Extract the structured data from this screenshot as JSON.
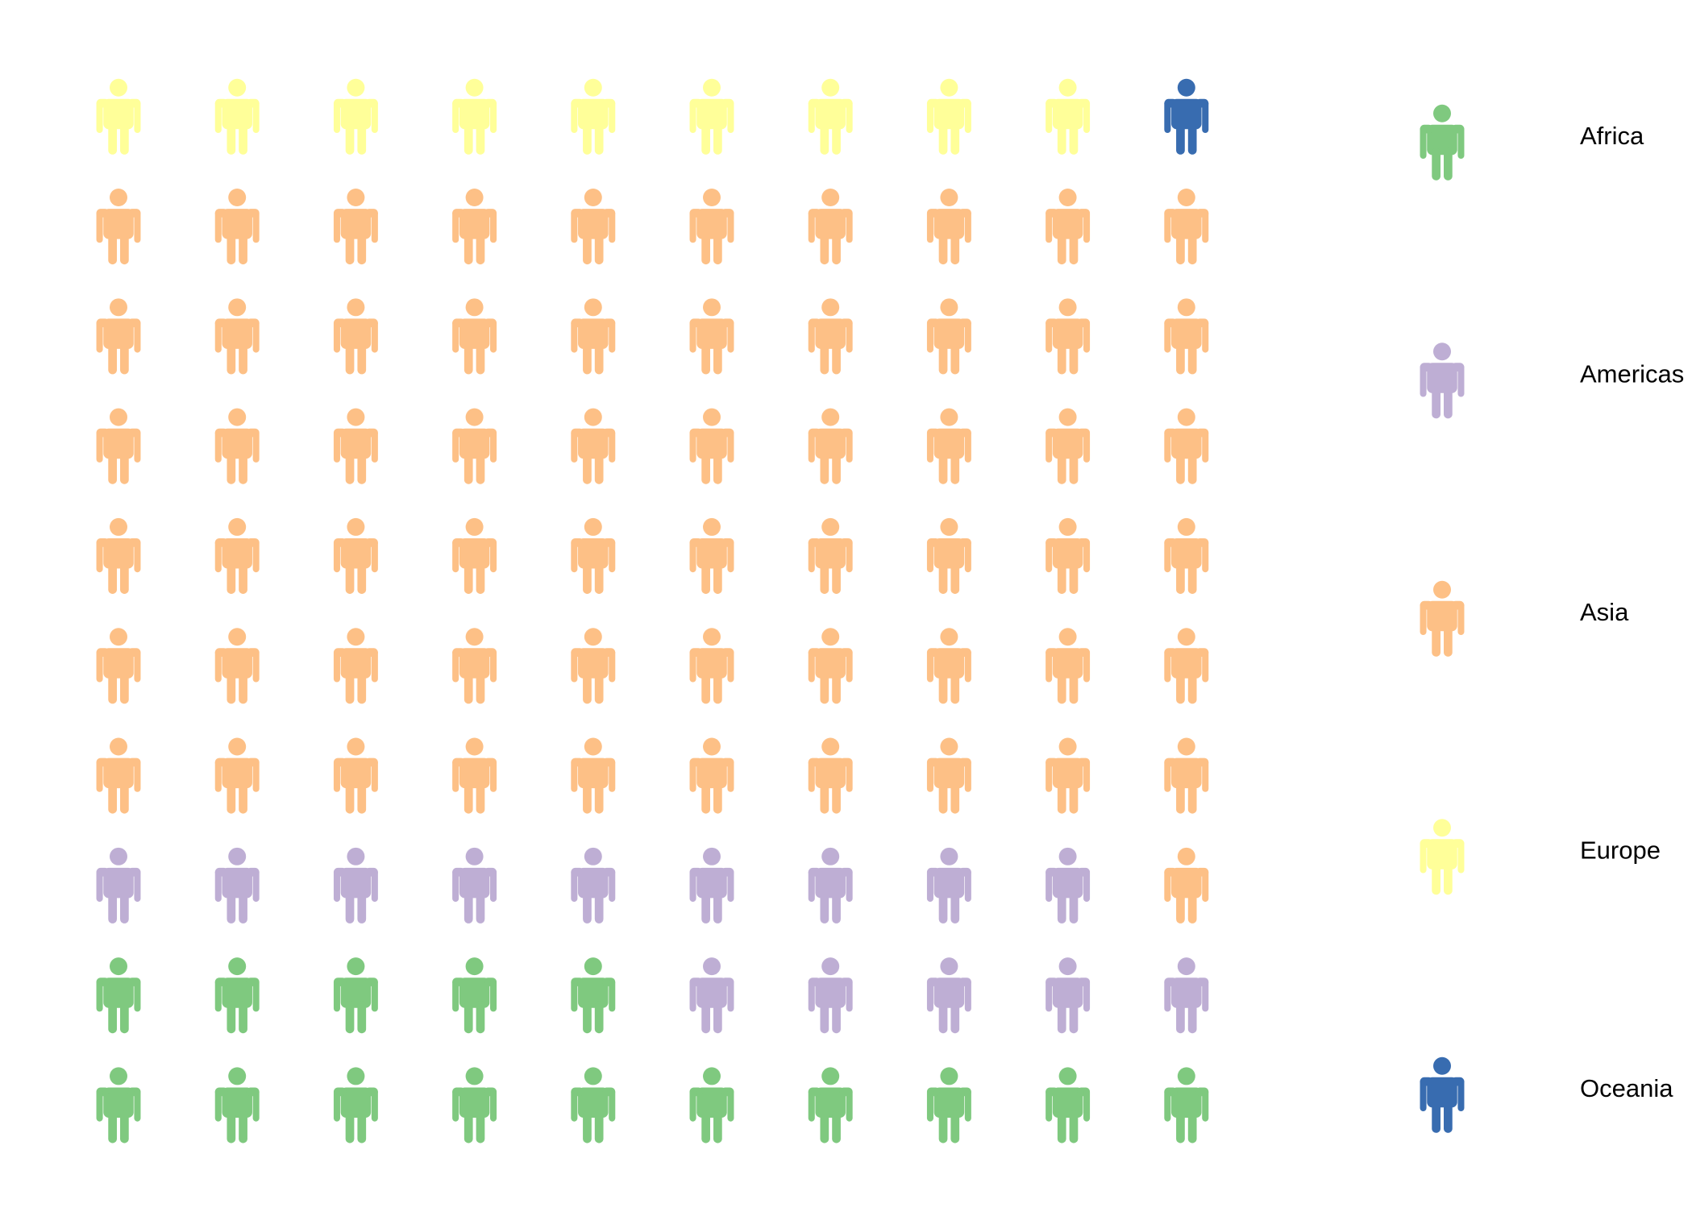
{
  "chart_data": {
    "type": "pictogram",
    "categories": [
      "Africa",
      "Americas",
      "Asia",
      "Europe",
      "Oceania"
    ],
    "values": [
      15,
      14,
      61,
      9,
      1
    ],
    "colors": [
      "#7fc97f",
      "#beaed4",
      "#fdc086",
      "#ffff99",
      "#386cb0"
    ]
  }
}
